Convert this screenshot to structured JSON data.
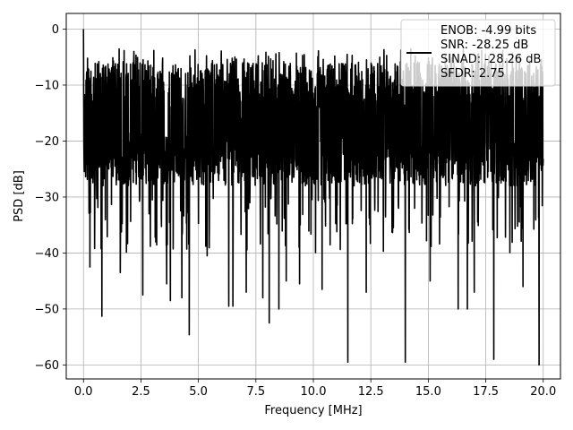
{
  "chart_data": {
    "type": "line",
    "xlabel": "Frequency [MHz]",
    "ylabel": "PSD [dB]",
    "xlim": [
      -0.75,
      20.75
    ],
    "ylim": [
      -62.5,
      2.8
    ],
    "xticks": [
      0.0,
      2.5,
      5.0,
      7.5,
      10.0,
      12.5,
      15.0,
      17.5,
      20.0
    ],
    "xtick_labels": [
      "0.0",
      "2.5",
      "5.0",
      "7.5",
      "10.0",
      "12.5",
      "15.0",
      "17.5",
      "20.0"
    ],
    "yticks": [
      0,
      -10,
      -20,
      -30,
      -40,
      -50,
      -60
    ],
    "ytick_labels": [
      "0",
      "−10",
      "−20",
      "−30",
      "−40",
      "−50",
      "−60"
    ],
    "grid": true,
    "legend_placement": "top-right",
    "legend_lines": [
      "ENOB: -4.99 bits",
      "SNR: -28.25 dB",
      "SINAD: -28.26 dB",
      "SFDR: 2.75"
    ],
    "series": [
      {
        "color": "#000000",
        "x_range": [
          0,
          20
        ],
        "peak": [
          0,
          0
        ],
        "typical_band": [
          -28,
          -6
        ],
        "noise_ceiling": -3.5,
        "deep_nulls": [
          [
            0.28,
            -42.5
          ],
          [
            0.8,
            -51.3
          ],
          [
            1.6,
            -43.5
          ],
          [
            2.58,
            -47.5
          ],
          [
            3.62,
            -45.5
          ],
          [
            3.78,
            -48.5
          ],
          [
            4.28,
            -48
          ],
          [
            4.6,
            -54.6
          ],
          [
            5.38,
            -40.5
          ],
          [
            6.32,
            -49.5
          ],
          [
            6.5,
            -49.5
          ],
          [
            7.08,
            -47
          ],
          [
            7.8,
            -48
          ],
          [
            8.08,
            -52.5
          ],
          [
            8.5,
            -50
          ],
          [
            8.82,
            -45
          ],
          [
            9.4,
            -45.5
          ],
          [
            10.38,
            -46.5
          ],
          [
            11.5,
            -59.5
          ],
          [
            12.3,
            -47
          ],
          [
            14.0,
            -59.5
          ],
          [
            15.08,
            -45
          ],
          [
            16.3,
            -50
          ],
          [
            16.7,
            -50
          ],
          [
            17.0,
            -47
          ],
          [
            17.85,
            -59
          ],
          [
            19.12,
            -46
          ],
          [
            19.82,
            -60
          ]
        ]
      }
    ]
  }
}
